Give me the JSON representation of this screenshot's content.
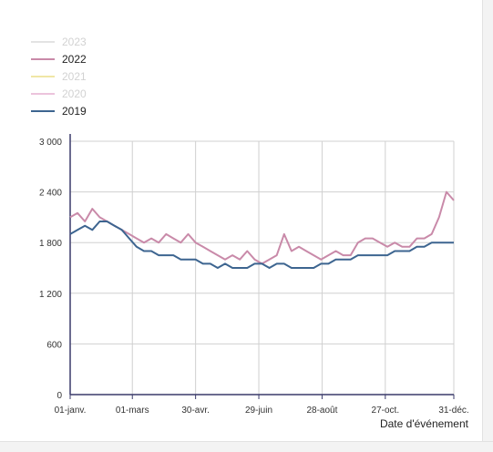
{
  "legend": [
    {
      "name": "2023",
      "color": "#e3e3e3",
      "text_color": "#d2d2d2",
      "active": false
    },
    {
      "name": "2022",
      "color": "#c98aa9",
      "text_color": "#222222",
      "active": true
    },
    {
      "name": "2021",
      "color": "#f0e6a6",
      "text_color": "#d2d2d2",
      "active": false
    },
    {
      "name": "2020",
      "color": "#ecc4dc",
      "text_color": "#d2d2d2",
      "active": false
    },
    {
      "name": "2019",
      "color": "#3d6590",
      "text_color": "#222222",
      "active": true
    }
  ],
  "chart_data": {
    "type": "line",
    "xlabel": "Date d'événement",
    "ylabel": "",
    "ylim": [
      0,
      3000
    ],
    "yticks": [
      0,
      600,
      1200,
      1800,
      2400,
      3000
    ],
    "ytick_labels": [
      "0",
      "600",
      "1 200",
      "1 800",
      "2 400",
      "3 000"
    ],
    "xlim": [
      1,
      365
    ],
    "xticks": [
      1,
      60,
      120,
      180,
      240,
      300,
      365
    ],
    "xtick_labels": [
      "01-janv.",
      "01-mars",
      "30-avr.",
      "29-juin",
      "28-août",
      "27-oct.",
      "31-déc."
    ],
    "grid": true,
    "legend_position": "top-left",
    "series": [
      {
        "name": "2022",
        "color": "#c98aa9",
        "x": [
          1,
          8,
          15,
          22,
          29,
          36,
          43,
          50,
          57,
          64,
          71,
          78,
          85,
          92,
          99,
          106,
          113,
          120,
          127,
          134,
          141,
          148,
          155,
          162,
          169,
          176,
          183,
          190,
          197,
          204,
          211,
          218,
          225,
          232,
          239,
          246,
          253,
          260,
          267,
          274,
          281,
          288,
          295,
          302,
          309,
          316,
          323,
          330,
          337,
          344,
          351,
          358,
          365
        ],
        "values": [
          2100,
          2150,
          2050,
          2200,
          2100,
          2050,
          2000,
          1950,
          1900,
          1850,
          1800,
          1850,
          1800,
          1900,
          1850,
          1800,
          1900,
          1800,
          1750,
          1700,
          1650,
          1600,
          1650,
          1600,
          1700,
          1600,
          1550,
          1600,
          1650,
          1900,
          1700,
          1750,
          1700,
          1650,
          1600,
          1650,
          1700,
          1650,
          1650,
          1800,
          1850,
          1850,
          1800,
          1750,
          1800,
          1750,
          1750,
          1850,
          1850,
          1900,
          2100,
          2400,
          2300
        ]
      },
      {
        "name": "2019",
        "color": "#3d6590",
        "x": [
          1,
          8,
          15,
          22,
          29,
          36,
          43,
          50,
          57,
          64,
          71,
          78,
          85,
          92,
          99,
          106,
          113,
          120,
          127,
          134,
          141,
          148,
          155,
          162,
          169,
          176,
          183,
          190,
          197,
          204,
          211,
          218,
          225,
          232,
          239,
          246,
          253,
          260,
          267,
          274,
          281,
          288,
          295,
          302,
          309,
          316,
          323,
          330,
          337,
          344,
          351,
          358,
          365
        ],
        "values": [
          1900,
          1950,
          2000,
          1950,
          2050,
          2050,
          2000,
          1950,
          1850,
          1750,
          1700,
          1700,
          1650,
          1650,
          1650,
          1600,
          1600,
          1600,
          1550,
          1550,
          1500,
          1550,
          1500,
          1500,
          1500,
          1550,
          1550,
          1500,
          1550,
          1550,
          1500,
          1500,
          1500,
          1500,
          1550,
          1550,
          1600,
          1600,
          1600,
          1650,
          1650,
          1650,
          1650,
          1650,
          1700,
          1700,
          1700,
          1750,
          1750,
          1800,
          1800,
          1800,
          1800
        ]
      }
    ]
  }
}
